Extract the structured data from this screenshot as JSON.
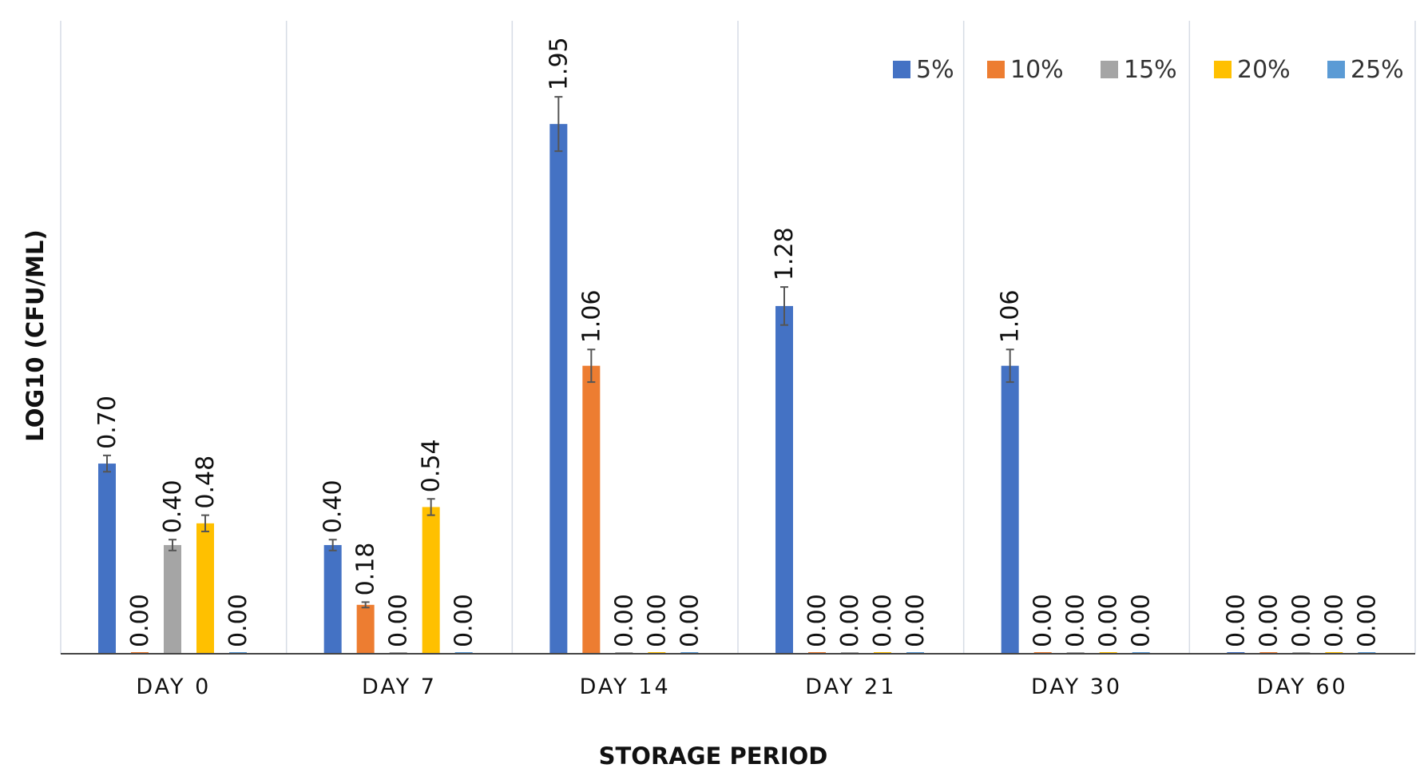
{
  "chart_data": {
    "type": "bar",
    "xlabel": "STORAGE PERIOD",
    "ylabel": "LOG10 (CFU/ML)",
    "ylim": [
      0,
      2.33
    ],
    "grid": "vertical lines between categories",
    "legend_position": "top-right",
    "categories": [
      "DAY 0",
      "DAY 7",
      "DAY 14",
      "DAY 21",
      "DAY 30",
      "DAY 60"
    ],
    "series": [
      {
        "name": "5%",
        "color": "#4472C4",
        "values": [
          0.7,
          0.4,
          1.95,
          1.28,
          1.06,
          0.0
        ],
        "labels": [
          "0.70",
          "0.40",
          "1.95",
          "1.28",
          "1.06",
          "0.00"
        ],
        "errors": [
          0.03,
          0.02,
          0.1,
          0.07,
          0.06,
          0
        ]
      },
      {
        "name": "10%",
        "color": "#ED7D31",
        "values": [
          0.0,
          0.18,
          1.06,
          0.0,
          0.0,
          0.0
        ],
        "labels": [
          "0.00",
          "0.18",
          "1.06",
          "0.00",
          "0.00",
          "0.00"
        ],
        "errors": [
          0,
          0.01,
          0.06,
          0,
          0,
          0
        ]
      },
      {
        "name": "15%",
        "color": "#A5A5A5",
        "values": [
          0.4,
          0.0,
          0.0,
          0.0,
          0.0,
          0.0
        ],
        "labels": [
          "0.40",
          "0.00",
          "0.00",
          "0.00",
          "0.00",
          "0.00"
        ],
        "errors": [
          0.02,
          0,
          0,
          0,
          0,
          0
        ]
      },
      {
        "name": "20%",
        "color": "#FFC000",
        "values": [
          0.48,
          0.54,
          0.0,
          0.0,
          0.0,
          0.0
        ],
        "labels": [
          "0.48",
          "0.54",
          "0.00",
          "0.00",
          "0.00",
          "0.00"
        ],
        "errors": [
          0.03,
          0.03,
          0,
          0,
          0,
          0
        ]
      },
      {
        "name": "25%",
        "color": "#5B9BD5",
        "values": [
          0.0,
          0.0,
          0.0,
          0.0,
          0.0,
          0.0
        ],
        "labels": [
          "0.00",
          "0.00",
          "0.00",
          "0.00",
          "0.00",
          "0.00"
        ],
        "errors": [
          0,
          0,
          0,
          0,
          0,
          0
        ]
      }
    ]
  }
}
